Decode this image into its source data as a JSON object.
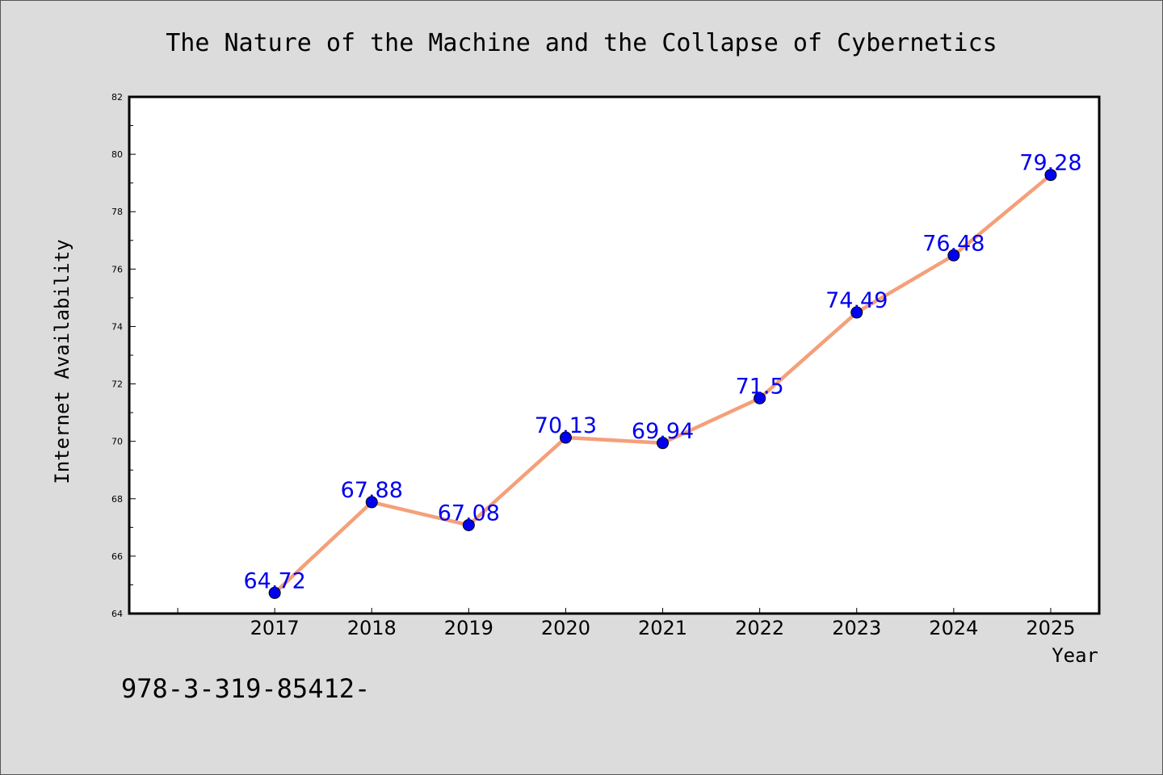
{
  "chart_data": {
    "type": "line",
    "title": "The Nature of the Machine and the Collapse of Cybernetics",
    "xlabel": "Year",
    "ylabel": "Internet Availability",
    "categories": [
      "2017",
      "2018",
      "2019",
      "2020",
      "2021",
      "2022",
      "2023",
      "2024",
      "2025"
    ],
    "values": [
      64.72,
      67.88,
      67.08,
      70.13,
      69.94,
      71.5,
      74.49,
      76.48,
      79.28
    ],
    "data_labels": [
      "64.72",
      "67.88",
      "67.08",
      "70.13",
      "69.94",
      "71.5",
      "74.49",
      "76.48",
      "79.28"
    ],
    "ylim": [
      64,
      82
    ],
    "yticks": [
      64,
      66,
      68,
      70,
      72,
      74,
      76,
      78,
      80,
      82
    ],
    "ytick_labels": [
      "64",
      "66",
      "68",
      "70",
      "72",
      "74",
      "76",
      "78",
      "80",
      "82"
    ],
    "grid": false,
    "legend": "none",
    "colors": {
      "line": "#f4a07a",
      "marker": "#0000ee",
      "label": "#0000ee",
      "background": "#dcdcdc",
      "plot_background": "#ffffff"
    }
  },
  "footer": {
    "code": "978-3-319-85412-"
  }
}
